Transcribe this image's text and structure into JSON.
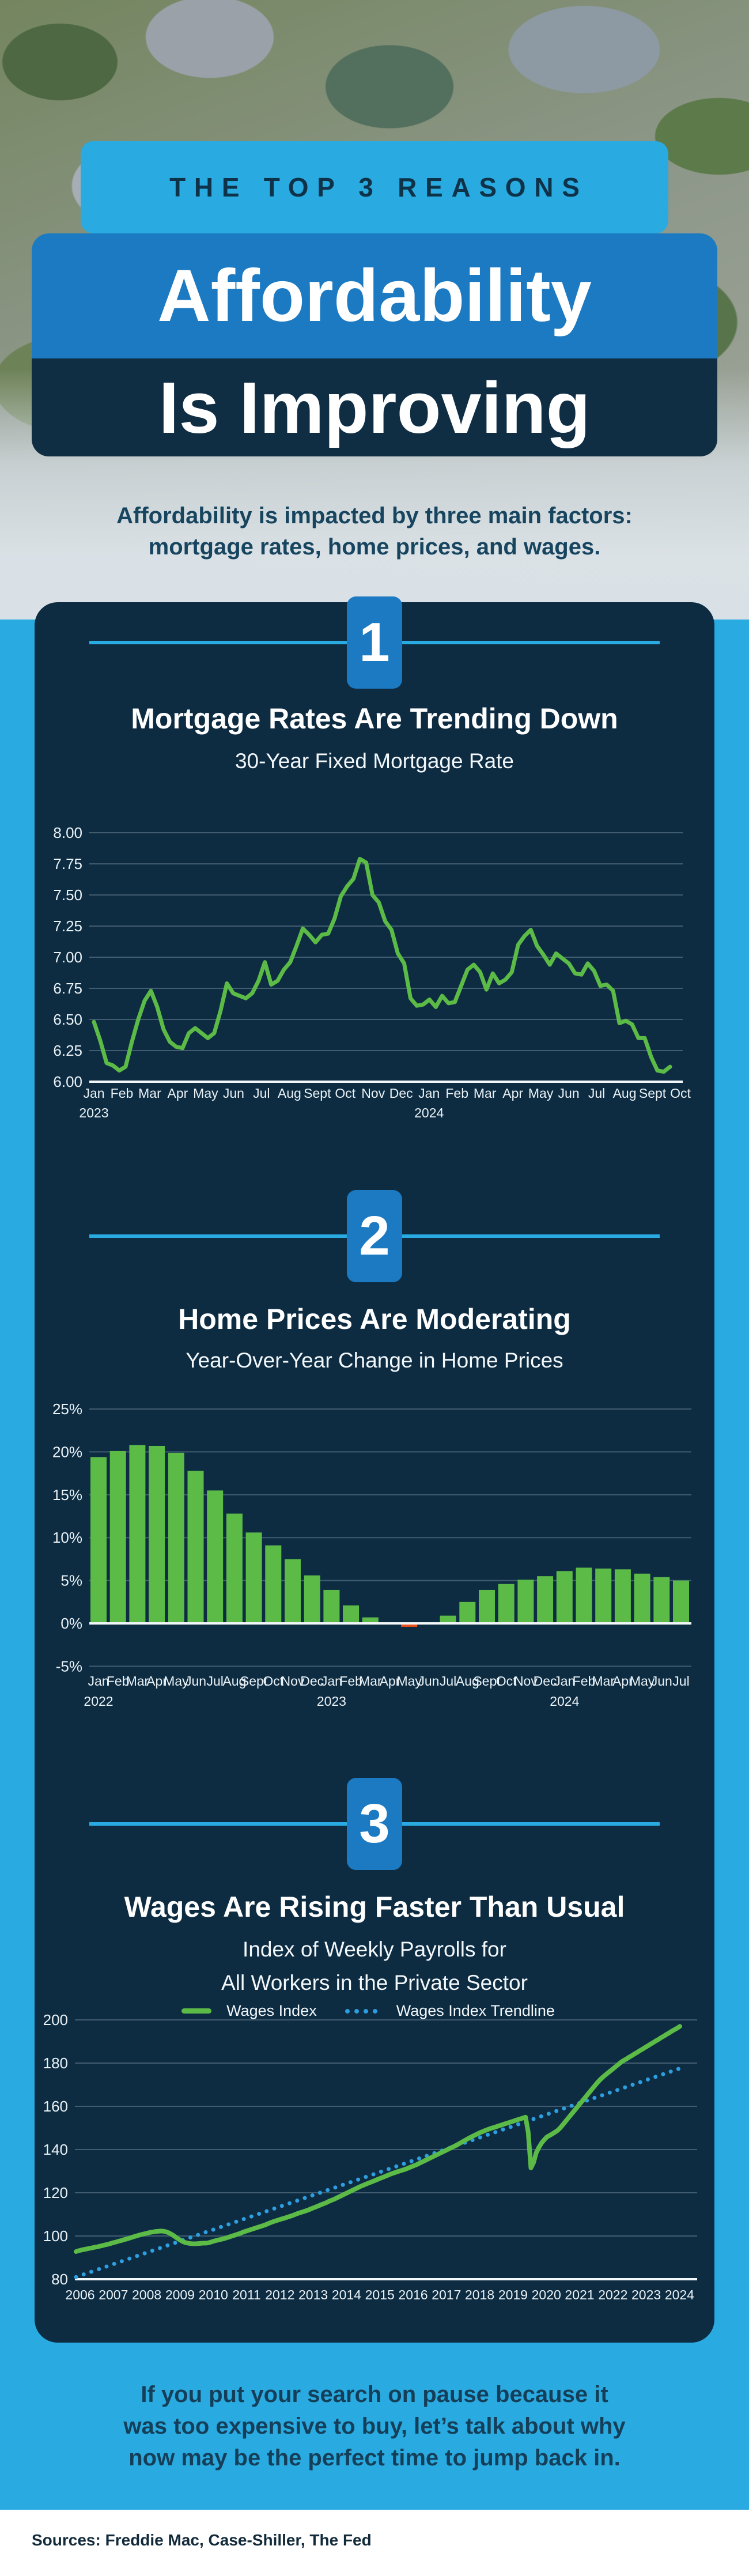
{
  "header": {
    "kicker": "THE TOP 3 REASONS",
    "title_line1": "Affordability",
    "title_line2": "Is Improving"
  },
  "intro": {
    "line1": "Affordability is impacted by three main factors:",
    "line2": "mortgage rates, home prices, and wages."
  },
  "sections": [
    {
      "number": "1",
      "title": "Mortgage Rates Are Trending Down",
      "subtitle": "30-Year Fixed Mortgage Rate"
    },
    {
      "number": "2",
      "title": "Home Prices Are Moderating",
      "subtitle": "Year-Over-Year Change in Home Prices"
    },
    {
      "number": "3",
      "title": "Wages Are Rising Faster Than Usual",
      "subtitle_line1": "Index of Weekly Payrolls for",
      "subtitle_line2": "All Workers in the Private Sector"
    }
  ],
  "footer": {
    "line1": "If you put your search on pause because it",
    "line2": "was too expensive to buy, let’s talk about why",
    "line3": "now may be the perfect time to jump back in."
  },
  "sources": "Sources: Freddie Mac, Case-Shiller, The Fed",
  "colors": {
    "page_blue": "#29ABE2",
    "medium_blue": "#1C7AC2",
    "card_navy": "#0D2C42",
    "green": "#5CBA47",
    "orange": "#E8511D",
    "trend_blue": "#2D9FE0",
    "dark_text": "#17455F"
  },
  "chart_data": [
    {
      "id": "mortgage-rate",
      "type": "line",
      "title": "30-Year Fixed Mortgage Rate",
      "ylim": [
        6.0,
        8.0
      ],
      "grid": true,
      "yticks": [
        "8.00",
        "7.75",
        "7.50",
        "7.25",
        "7.00",
        "6.75",
        "6.50",
        "6.25",
        "6.00"
      ],
      "xticks": [
        "Jan",
        "Feb",
        "Mar",
        "Apr",
        "May",
        "Jun",
        "Jul",
        "Aug",
        "Sept",
        "Oct",
        "Nov",
        "Dec",
        "Jan",
        "Feb",
        "Mar",
        "Apr",
        "May",
        "Jun",
        "Jul",
        "Aug",
        "Sept",
        "Oct"
      ],
      "year_ticks": [
        {
          "index": 0,
          "label": "2023"
        },
        {
          "index": 12,
          "label": "2024"
        }
      ],
      "series": [
        {
          "name": "30-Year Fixed Mortgage Rate",
          "values": [
            6.48,
            6.33,
            6.15,
            6.13,
            6.09,
            6.12,
            6.32,
            6.5,
            6.65,
            6.73,
            6.6,
            6.42,
            6.32,
            6.28,
            6.27,
            6.39,
            6.43,
            6.39,
            6.35,
            6.39,
            6.57,
            6.79,
            6.71,
            6.69,
            6.67,
            6.71,
            6.81,
            6.96,
            6.78,
            6.81,
            6.9,
            6.96,
            7.09,
            7.23,
            7.18,
            7.12,
            7.18,
            7.19,
            7.31,
            7.49,
            7.57,
            7.63,
            7.79,
            7.76,
            7.5,
            7.44,
            7.29,
            7.22,
            7.03,
            6.95,
            6.67,
            6.61,
            6.62,
            6.66,
            6.6,
            6.69,
            6.63,
            6.64,
            6.77,
            6.9,
            6.94,
            6.88,
            6.74,
            6.87,
            6.79,
            6.82,
            6.88,
            7.1,
            7.17,
            7.22,
            7.09,
            7.02,
            6.94,
            7.03,
            6.99,
            6.95,
            6.87,
            6.86,
            6.95,
            6.89,
            6.77,
            6.78,
            6.73,
            6.47,
            6.49,
            6.46,
            6.35,
            6.35,
            6.2,
            6.09,
            6.08,
            6.12
          ]
        }
      ],
      "line_color": "#5CBA47"
    },
    {
      "id": "home-prices",
      "type": "bar",
      "title": "Year-Over-Year Change in Home Prices",
      "ylim": [
        -5,
        25
      ],
      "grid": true,
      "yticks": [
        {
          "label": "25%",
          "value": 25
        },
        {
          "label": "20%",
          "value": 20
        },
        {
          "label": "15%",
          "value": 15
        },
        {
          "label": "10%",
          "value": 10
        },
        {
          "label": "5%",
          "value": 5
        },
        {
          "label": "0%",
          "value": 0
        },
        {
          "label": "-5%",
          "value": -5
        }
      ],
      "categories": [
        "Jan",
        "Feb",
        "Mar",
        "Apr",
        "May",
        "Jun",
        "Jul",
        "Aug",
        "Sept",
        "Oct",
        "Nov",
        "Dec",
        "Jan",
        "Feb",
        "Mar",
        "Apr",
        "May",
        "Jun",
        "Jul",
        "Aug",
        "Sept",
        "Oct",
        "Nov",
        "Dec",
        "Jan",
        "Feb",
        "Mar",
        "Apr",
        "May",
        "Jun",
        "Jul"
      ],
      "year_ticks": [
        {
          "index": 0,
          "label": "2022"
        },
        {
          "index": 12,
          "label": "2023"
        },
        {
          "index": 24,
          "label": "2024"
        }
      ],
      "values": [
        19.4,
        20.1,
        20.8,
        20.7,
        19.9,
        17.8,
        15.5,
        12.8,
        10.6,
        9.1,
        7.5,
        5.6,
        3.9,
        2.1,
        0.7,
        -0.1,
        -0.4,
        0.0,
        0.9,
        2.5,
        3.9,
        4.6,
        5.1,
        5.5,
        6.1,
        6.5,
        6.4,
        6.3,
        5.8,
        5.4,
        5.0
      ],
      "bar_color": "#5CBA47",
      "negative_color": "#E8511D"
    },
    {
      "id": "wages",
      "type": "line",
      "title": "Index of Weekly Payrolls for All Workers in the Private Sector",
      "ylim": [
        80,
        200
      ],
      "grid": true,
      "yticks": [
        "200",
        "180",
        "160",
        "140",
        "120",
        "100",
        "80"
      ],
      "xticks": [
        "2006",
        "2007",
        "2008",
        "2009",
        "2010",
        "2011",
        "2012",
        "2013",
        "2014",
        "2015",
        "2016",
        "2017",
        "2018",
        "2019",
        "2020",
        "2021",
        "2022",
        "2023",
        "2024"
      ],
      "legend_position": "top",
      "series": [
        {
          "name": "Wages Index",
          "values": [
            92.8,
            93.2,
            93.5,
            93.8,
            94.0,
            94.3,
            94.5,
            94.8,
            95.0,
            95.3,
            95.6,
            95.9,
            96.2,
            96.5,
            96.9,
            97.2,
            97.6,
            97.9,
            98.3,
            98.6,
            99.0,
            99.4,
            99.8,
            100.1,
            100.5,
            100.8,
            101.1,
            101.4,
            101.7,
            101.9,
            102.1,
            102.2,
            102.3,
            102.2,
            101.9,
            101.4,
            100.7,
            99.9,
            99.0,
            98.2,
            97.5,
            97.0,
            96.7,
            96.5,
            96.4,
            96.4,
            96.5,
            96.6,
            96.7,
            96.7,
            96.9,
            97.3,
            97.7,
            98.0,
            98.3,
            98.6,
            98.9,
            99.3,
            99.7,
            100.1,
            100.5,
            100.9,
            101.4,
            101.9,
            102.3,
            102.7,
            103.1,
            103.5,
            103.9,
            104.3,
            104.7,
            105.1,
            105.6,
            106.1,
            106.6,
            107.0,
            107.4,
            107.8,
            108.1,
            108.5,
            108.9,
            109.3,
            109.8,
            110.3,
            110.7,
            111.1,
            111.5,
            111.9,
            112.4,
            112.9,
            113.4,
            113.9,
            114.4,
            114.9,
            115.4,
            116.0,
            116.5,
            117.0,
            117.6,
            118.2,
            118.8,
            119.4,
            120.0,
            120.6,
            121.2,
            121.8,
            122.4,
            123.0,
            123.5,
            124.0,
            124.5,
            125.0,
            125.5,
            126.0,
            126.5,
            127.0,
            127.5,
            128.0,
            128.5,
            129.0,
            129.4,
            129.8,
            130.2,
            130.6,
            131.0,
            131.5,
            132.0,
            132.5,
            133.0,
            133.6,
            134.2,
            134.8,
            135.4,
            136.0,
            136.6,
            137.2,
            137.8,
            138.4,
            139.0,
            139.6,
            140.2,
            140.8,
            141.4,
            142.0,
            142.7,
            143.4,
            144.1,
            144.8,
            145.5,
            146.1,
            146.7,
            147.3,
            147.9,
            148.4,
            148.9,
            149.4,
            149.8,
            150.2,
            150.6,
            151.0,
            151.4,
            151.8,
            152.2,
            152.6,
            153.0,
            153.4,
            153.8,
            154.2,
            154.6,
            155.0,
            148.0,
            131.5,
            134.0,
            138.5,
            141.0,
            143.0,
            144.5,
            145.8,
            146.5,
            147.2,
            148.0,
            148.8,
            150.0,
            151.5,
            153.0,
            154.5,
            156.0,
            157.5,
            159.0,
            160.5,
            162.0,
            163.5,
            165.0,
            166.5,
            168.0,
            169.5,
            171.0,
            172.3,
            173.5,
            174.5,
            175.5,
            176.5,
            177.5,
            178.5,
            179.5,
            180.5,
            181.3,
            182.0,
            182.8,
            183.5,
            184.3,
            185.0,
            185.8,
            186.5,
            187.3,
            188.0,
            188.8,
            189.5,
            190.3,
            191.0,
            191.8,
            192.5,
            193.3,
            194.0,
            194.8,
            195.5,
            196.2,
            197.0
          ]
        },
        {
          "name": "Wages Index Trendline",
          "trend_endpoints": [
            81,
            178
          ]
        }
      ],
      "line_color": "#5CBA47",
      "trend_color": "#2D9FE0"
    }
  ]
}
